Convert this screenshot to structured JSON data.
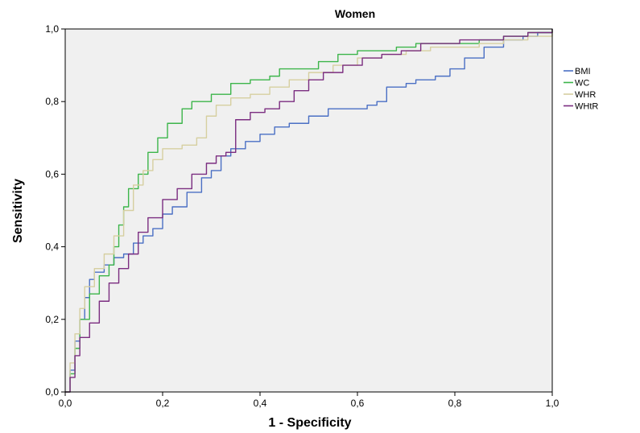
{
  "chart_data": {
    "type": "line",
    "title": "Women",
    "xlabel": "1 - Specificity",
    "ylabel": "Sensitivity",
    "xlim": [
      0,
      1
    ],
    "ylim": [
      0,
      1
    ],
    "grid": false,
    "legend_position": "right",
    "x_ticks": [
      "0,0",
      "0,2",
      "0,4",
      "0,6",
      "0,8",
      "1,0"
    ],
    "y_ticks": [
      "0,0",
      "0,2",
      "0,4",
      "0,6",
      "0,8",
      "1,0"
    ],
    "series": [
      {
        "name": "BMI",
        "color": "#4a6fc4",
        "points": [
          [
            0,
            0
          ],
          [
            0.01,
            0.06
          ],
          [
            0.02,
            0.14
          ],
          [
            0.03,
            0.2
          ],
          [
            0.04,
            0.26
          ],
          [
            0.05,
            0.31
          ],
          [
            0.06,
            0.33
          ],
          [
            0.08,
            0.35
          ],
          [
            0.1,
            0.37
          ],
          [
            0.12,
            0.38
          ],
          [
            0.14,
            0.41
          ],
          [
            0.16,
            0.43
          ],
          [
            0.18,
            0.45
          ],
          [
            0.2,
            0.49
          ],
          [
            0.22,
            0.51
          ],
          [
            0.25,
            0.55
          ],
          [
            0.28,
            0.59
          ],
          [
            0.3,
            0.61
          ],
          [
            0.32,
            0.65
          ],
          [
            0.34,
            0.67
          ],
          [
            0.37,
            0.69
          ],
          [
            0.4,
            0.71
          ],
          [
            0.43,
            0.73
          ],
          [
            0.46,
            0.74
          ],
          [
            0.5,
            0.76
          ],
          [
            0.54,
            0.78
          ],
          [
            0.58,
            0.78
          ],
          [
            0.62,
            0.79
          ],
          [
            0.64,
            0.8
          ],
          [
            0.66,
            0.84
          ],
          [
            0.68,
            0.84
          ],
          [
            0.7,
            0.85
          ],
          [
            0.72,
            0.86
          ],
          [
            0.76,
            0.87
          ],
          [
            0.79,
            0.89
          ],
          [
            0.82,
            0.92
          ],
          [
            0.86,
            0.95
          ],
          [
            0.9,
            0.97
          ],
          [
            0.94,
            0.98
          ],
          [
            0.97,
            0.99
          ],
          [
            1,
            1
          ]
        ]
      },
      {
        "name": "WC",
        "color": "#3cb54a",
        "points": [
          [
            0,
            0
          ],
          [
            0.01,
            0.05
          ],
          [
            0.02,
            0.12
          ],
          [
            0.03,
            0.2
          ],
          [
            0.05,
            0.27
          ],
          [
            0.07,
            0.32
          ],
          [
            0.09,
            0.35
          ],
          [
            0.1,
            0.4
          ],
          [
            0.11,
            0.46
          ],
          [
            0.12,
            0.51
          ],
          [
            0.13,
            0.56
          ],
          [
            0.15,
            0.6
          ],
          [
            0.17,
            0.66
          ],
          [
            0.19,
            0.7
          ],
          [
            0.21,
            0.74
          ],
          [
            0.24,
            0.78
          ],
          [
            0.26,
            0.8
          ],
          [
            0.3,
            0.82
          ],
          [
            0.34,
            0.85
          ],
          [
            0.38,
            0.86
          ],
          [
            0.42,
            0.87
          ],
          [
            0.44,
            0.89
          ],
          [
            0.48,
            0.89
          ],
          [
            0.52,
            0.91
          ],
          [
            0.56,
            0.93
          ],
          [
            0.6,
            0.94
          ],
          [
            0.64,
            0.94
          ],
          [
            0.68,
            0.95
          ],
          [
            0.72,
            0.96
          ],
          [
            0.76,
            0.96
          ],
          [
            0.8,
            0.96
          ],
          [
            0.85,
            0.97
          ],
          [
            0.9,
            0.98
          ],
          [
            0.95,
            0.99
          ],
          [
            1,
            1
          ]
        ]
      },
      {
        "name": "WHR",
        "color": "#d6cfa0",
        "points": [
          [
            0,
            0
          ],
          [
            0.01,
            0.08
          ],
          [
            0.02,
            0.16
          ],
          [
            0.03,
            0.23
          ],
          [
            0.04,
            0.29
          ],
          [
            0.06,
            0.34
          ],
          [
            0.08,
            0.38
          ],
          [
            0.1,
            0.43
          ],
          [
            0.12,
            0.5
          ],
          [
            0.14,
            0.57
          ],
          [
            0.16,
            0.61
          ],
          [
            0.18,
            0.64
          ],
          [
            0.2,
            0.67
          ],
          [
            0.24,
            0.68
          ],
          [
            0.27,
            0.7
          ],
          [
            0.29,
            0.76
          ],
          [
            0.31,
            0.79
          ],
          [
            0.34,
            0.81
          ],
          [
            0.38,
            0.82
          ],
          [
            0.42,
            0.84
          ],
          [
            0.46,
            0.86
          ],
          [
            0.5,
            0.88
          ],
          [
            0.55,
            0.9
          ],
          [
            0.6,
            0.92
          ],
          [
            0.65,
            0.93
          ],
          [
            0.7,
            0.94
          ],
          [
            0.75,
            0.95
          ],
          [
            0.8,
            0.95
          ],
          [
            0.85,
            0.96
          ],
          [
            0.9,
            0.97
          ],
          [
            0.95,
            0.98
          ],
          [
            1,
            1
          ]
        ]
      },
      {
        "name": "WHtR",
        "color": "#7b2d80",
        "points": [
          [
            0,
            0
          ],
          [
            0.01,
            0.04
          ],
          [
            0.02,
            0.1
          ],
          [
            0.03,
            0.15
          ],
          [
            0.05,
            0.19
          ],
          [
            0.07,
            0.25
          ],
          [
            0.09,
            0.3
          ],
          [
            0.11,
            0.34
          ],
          [
            0.13,
            0.38
          ],
          [
            0.15,
            0.44
          ],
          [
            0.17,
            0.48
          ],
          [
            0.2,
            0.53
          ],
          [
            0.23,
            0.56
          ],
          [
            0.26,
            0.6
          ],
          [
            0.29,
            0.63
          ],
          [
            0.31,
            0.65
          ],
          [
            0.33,
            0.66
          ],
          [
            0.35,
            0.75
          ],
          [
            0.38,
            0.77
          ],
          [
            0.41,
            0.78
          ],
          [
            0.44,
            0.8
          ],
          [
            0.47,
            0.83
          ],
          [
            0.5,
            0.86
          ],
          [
            0.53,
            0.88
          ],
          [
            0.57,
            0.9
          ],
          [
            0.61,
            0.92
          ],
          [
            0.65,
            0.93
          ],
          [
            0.69,
            0.94
          ],
          [
            0.73,
            0.96
          ],
          [
            0.77,
            0.96
          ],
          [
            0.81,
            0.97
          ],
          [
            0.85,
            0.97
          ],
          [
            0.9,
            0.98
          ],
          [
            0.95,
            0.99
          ],
          [
            1,
            1
          ]
        ]
      }
    ]
  }
}
